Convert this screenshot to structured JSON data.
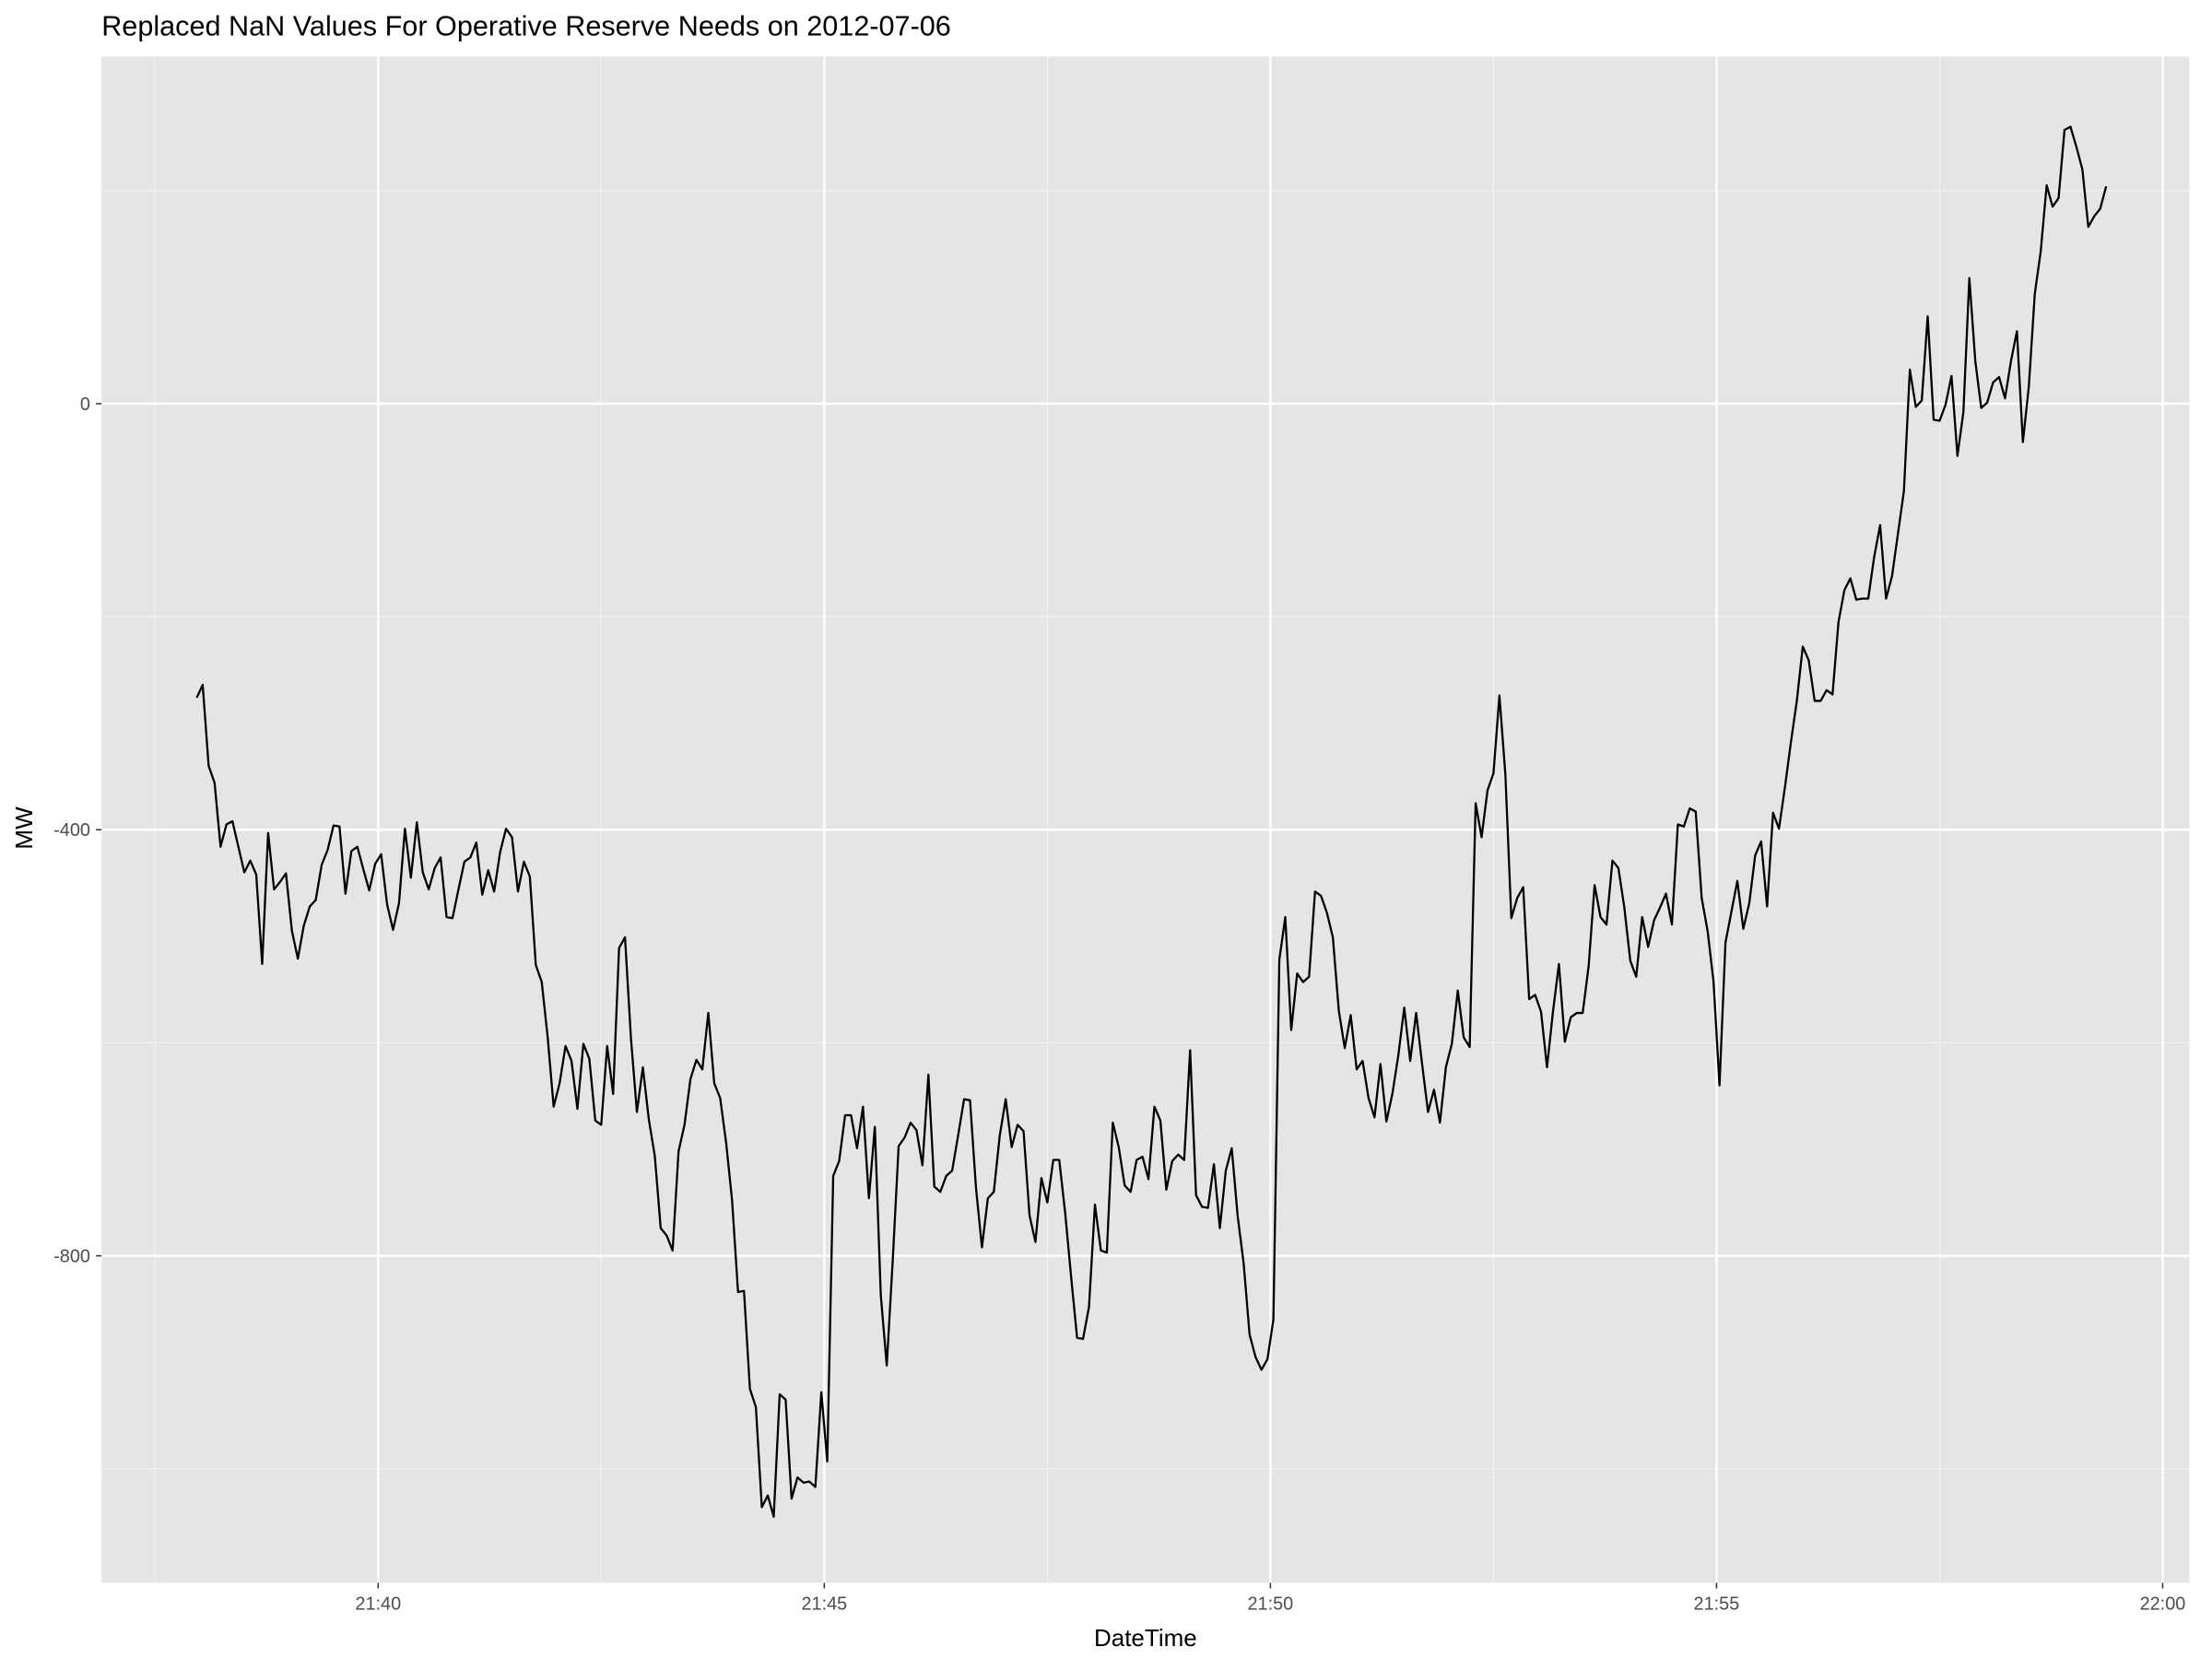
{
  "chart_data": {
    "type": "line",
    "title": "Replaced NaN Values For Operative Reserve Needs on 2012-07-06",
    "x_label": "DateTime",
    "y_label": "MW",
    "color": "#000000",
    "grid": true,
    "xlim": [
      "21:36:54",
      "22:00:18"
    ],
    "xticks": [
      "21:40",
      "21:45",
      "21:50",
      "21:55",
      "22:00"
    ],
    "ylim": [
      -1107,
      326
    ],
    "yticks": [
      -800,
      -400,
      0
    ],
    "x": [
      "21:37:58",
      "21:38:02",
      "21:38:06",
      "21:38:10",
      "21:38:14",
      "21:38:18",
      "21:38:22",
      "21:38:26",
      "21:38:30",
      "21:38:34",
      "21:38:38",
      "21:38:42",
      "21:38:46",
      "21:38:50",
      "21:38:54",
      "21:38:58",
      "21:39:02",
      "21:39:06",
      "21:39:10",
      "21:39:14",
      "21:39:18",
      "21:39:22",
      "21:39:26",
      "21:39:30",
      "21:39:34",
      "21:39:38",
      "21:39:42",
      "21:39:46",
      "21:39:50",
      "21:39:54",
      "21:39:58",
      "21:40:02",
      "21:40:06",
      "21:40:10",
      "21:40:14",
      "21:40:18",
      "21:40:22",
      "21:40:26",
      "21:40:30",
      "21:40:34",
      "21:40:38",
      "21:40:42",
      "21:40:46",
      "21:40:50",
      "21:40:54",
      "21:40:58",
      "21:41:02",
      "21:41:06",
      "21:41:10",
      "21:41:14",
      "21:41:18",
      "21:41:22",
      "21:41:26",
      "21:41:30",
      "21:41:34",
      "21:41:38",
      "21:41:42",
      "21:41:46",
      "21:41:50",
      "21:41:54",
      "21:41:58",
      "21:42:02",
      "21:42:06",
      "21:42:10",
      "21:42:14",
      "21:42:18",
      "21:42:22",
      "21:42:26",
      "21:42:30",
      "21:42:34",
      "21:42:38",
      "21:42:42",
      "21:42:46",
      "21:42:50",
      "21:42:54",
      "21:42:58",
      "21:43:02",
      "21:43:06",
      "21:43:10",
      "21:43:14",
      "21:43:18",
      "21:43:22",
      "21:43:26",
      "21:43:30",
      "21:43:34",
      "21:43:38",
      "21:43:42",
      "21:43:46",
      "21:43:50",
      "21:43:54",
      "21:43:58",
      "21:44:02",
      "21:44:06",
      "21:44:10",
      "21:44:14",
      "21:44:18",
      "21:44:22",
      "21:44:26",
      "21:44:30",
      "21:44:34",
      "21:44:38",
      "21:44:42",
      "21:44:46",
      "21:44:50",
      "21:44:54",
      "21:44:58",
      "21:45:02",
      "21:45:06",
      "21:45:10",
      "21:45:14",
      "21:45:18",
      "21:45:22",
      "21:45:26",
      "21:45:30",
      "21:45:34",
      "21:45:38",
      "21:45:42",
      "21:45:46",
      "21:45:50",
      "21:45:54",
      "21:45:58",
      "21:46:02",
      "21:46:06",
      "21:46:10",
      "21:46:14",
      "21:46:18",
      "21:46:22",
      "21:46:26",
      "21:46:30",
      "21:46:34",
      "21:46:38",
      "21:46:42",
      "21:46:46",
      "21:46:50",
      "21:46:54",
      "21:46:58",
      "21:47:02",
      "21:47:06",
      "21:47:10",
      "21:47:14",
      "21:47:18",
      "21:47:22",
      "21:47:26",
      "21:47:30",
      "21:47:34",
      "21:47:38",
      "21:47:42",
      "21:47:46",
      "21:47:50",
      "21:47:54",
      "21:47:58",
      "21:48:02",
      "21:48:06",
      "21:48:10",
      "21:48:14",
      "21:48:18",
      "21:48:22",
      "21:48:26",
      "21:48:30",
      "21:48:34",
      "21:48:38",
      "21:48:42",
      "21:48:46",
      "21:48:50",
      "21:48:54",
      "21:48:58",
      "21:49:02",
      "21:49:06",
      "21:49:10",
      "21:49:14",
      "21:49:18",
      "21:49:22",
      "21:49:26",
      "21:49:30",
      "21:49:34",
      "21:49:38",
      "21:49:42",
      "21:49:46",
      "21:49:50",
      "21:49:54",
      "21:49:58",
      "21:50:02",
      "21:50:06",
      "21:50:10",
      "21:50:14",
      "21:50:18",
      "21:50:22",
      "21:50:26",
      "21:50:30",
      "21:50:34",
      "21:50:38",
      "21:50:42",
      "21:50:46",
      "21:50:50",
      "21:50:54",
      "21:50:58",
      "21:51:02",
      "21:51:06",
      "21:51:10",
      "21:51:14",
      "21:51:18",
      "21:51:22",
      "21:51:26",
      "21:51:30",
      "21:51:34",
      "21:51:38",
      "21:51:42",
      "21:51:46",
      "21:51:50",
      "21:51:54",
      "21:51:58",
      "21:52:02",
      "21:52:06",
      "21:52:10",
      "21:52:14",
      "21:52:18",
      "21:52:22",
      "21:52:26",
      "21:52:30",
      "21:52:34",
      "21:52:38",
      "21:52:42",
      "21:52:46",
      "21:52:50",
      "21:52:54",
      "21:52:58",
      "21:53:02",
      "21:53:06",
      "21:53:10",
      "21:53:14",
      "21:53:18",
      "21:53:22",
      "21:53:26",
      "21:53:30",
      "21:53:34",
      "21:53:38",
      "21:53:42",
      "21:53:46",
      "21:53:50",
      "21:53:54",
      "21:53:58",
      "21:54:02",
      "21:54:06",
      "21:54:10",
      "21:54:14",
      "21:54:18",
      "21:54:22",
      "21:54:26",
      "21:54:30",
      "21:54:34",
      "21:54:38",
      "21:54:42",
      "21:54:46",
      "21:54:50",
      "21:54:54",
      "21:54:58",
      "21:55:02",
      "21:55:06",
      "21:55:10",
      "21:55:14",
      "21:55:18",
      "21:55:22",
      "21:55:26",
      "21:55:30",
      "21:55:34",
      "21:55:38",
      "21:55:42",
      "21:55:46",
      "21:55:50",
      "21:55:54",
      "21:55:58",
      "21:56:02",
      "21:56:06",
      "21:56:10",
      "21:56:14",
      "21:56:18",
      "21:56:22",
      "21:56:26",
      "21:56:30",
      "21:56:34",
      "21:56:38",
      "21:56:42",
      "21:56:46",
      "21:56:50",
      "21:56:54",
      "21:56:58",
      "21:57:02",
      "21:57:06",
      "21:57:10",
      "21:57:14",
      "21:57:18",
      "21:57:22",
      "21:57:26",
      "21:57:30",
      "21:57:34",
      "21:57:38",
      "21:57:42",
      "21:57:46",
      "21:57:50",
      "21:57:54",
      "21:57:58",
      "21:58:02",
      "21:58:06",
      "21:58:10",
      "21:58:14",
      "21:58:18",
      "21:58:22",
      "21:58:26",
      "21:58:30",
      "21:58:34",
      "21:58:38",
      "21:58:42",
      "21:58:46",
      "21:58:50",
      "21:58:54",
      "21:58:58",
      "21:59:02",
      "21:59:06",
      "21:59:10",
      "21:59:14",
      "21:59:18",
      "21:59:22"
    ],
    "values": [
      -276,
      -264,
      -340,
      -356,
      -416,
      -395,
      -392,
      -416,
      -440,
      -429,
      -442,
      -526,
      -403,
      -456,
      -449,
      -441,
      -495,
      -521,
      -490,
      -472,
      -466,
      -433,
      -419,
      -396,
      -397,
      -460,
      -420,
      -416,
      -437,
      -457,
      -432,
      -423,
      -470,
      -494,
      -469,
      -399,
      -445,
      -393,
      -440,
      -456,
      -436,
      -426,
      -482,
      -483,
      -456,
      -430,
      -426,
      -412,
      -461,
      -438,
      -458,
      -421,
      -399,
      -407,
      -458,
      -430,
      -444,
      -527,
      -543,
      -595,
      -660,
      -638,
      -603,
      -617,
      -662,
      -601,
      -615,
      -673,
      -677,
      -603,
      -648,
      -511,
      -501,
      -596,
      -665,
      -623,
      -672,
      -706,
      -774,
      -781,
      -795,
      -702,
      -677,
      -634,
      -616,
      -625,
      -572,
      -638,
      -652,
      -694,
      -748,
      -834,
      -833,
      -925,
      -942,
      -1036,
      -1025,
      -1045,
      -930,
      -935,
      -1028,
      -1008,
      -1013,
      -1012,
      -1017,
      -928,
      -993,
      -725,
      -711,
      -668,
      -668,
      -699,
      -660,
      -746,
      -679,
      -837,
      -903,
      -805,
      -697,
      -689,
      -675,
      -682,
      -715,
      -630,
      -735,
      -740,
      -725,
      -720,
      -687,
      -653,
      -654,
      -736,
      -792,
      -746,
      -740,
      -687,
      -653,
      -698,
      -677,
      -683,
      -762,
      -787,
      -727,
      -750,
      -710,
      -710,
      -760,
      -820,
      -877,
      -878,
      -848,
      -752,
      -795,
      -797,
      -675,
      -698,
      -734,
      -740,
      -710,
      -707,
      -728,
      -660,
      -673,
      -738,
      -711,
      -705,
      -710,
      -607,
      -743,
      -754,
      -755,
      -714,
      -774,
      -720,
      -699,
      -763,
      -807,
      -874,
      -895,
      -907,
      -897,
      -860,
      -522,
      -482,
      -588,
      -535,
      -543,
      -538,
      -458,
      -462,
      -478,
      -501,
      -570,
      -605,
      -574,
      -625,
      -617,
      -652,
      -670,
      -620,
      -674,
      -648,
      -612,
      -567,
      -617,
      -572,
      -620,
      -665,
      -644,
      -675,
      -623,
      -601,
      -551,
      -595,
      -604,
      -375,
      -407,
      -363,
      -347,
      -274,
      -348,
      -483,
      -464,
      -454,
      -559,
      -555,
      -571,
      -623,
      -571,
      -526,
      -599,
      -576,
      -572,
      -572,
      -528,
      -452,
      -482,
      -489,
      -429,
      -436,
      -473,
      -523,
      -538,
      -482,
      -510,
      -485,
      -473,
      -460,
      -489,
      -395,
      -397,
      -380,
      -383,
      -464,
      -495,
      -543,
      -640,
      -506,
      -477,
      -448,
      -493,
      -469,
      -424,
      -411,
      -472,
      -384,
      -399,
      -360,
      -318,
      -279,
      -228,
      -241,
      -279,
      -279,
      -269,
      -273,
      -205,
      -175,
      -164,
      -184,
      -183,
      -183,
      -144,
      -114,
      -183,
      -162,
      -122,
      -82,
      32,
      -3,
      3,
      82,
      -15,
      -16,
      -1,
      26,
      -49,
      -8,
      118,
      40,
      -4,
      1,
      20,
      25,
      5,
      40,
      68,
      -36,
      16,
      103,
      143,
      205,
      185,
      193,
      257,
      260,
      241,
      220,
      166,
      176,
      183,
      204
    ]
  }
}
